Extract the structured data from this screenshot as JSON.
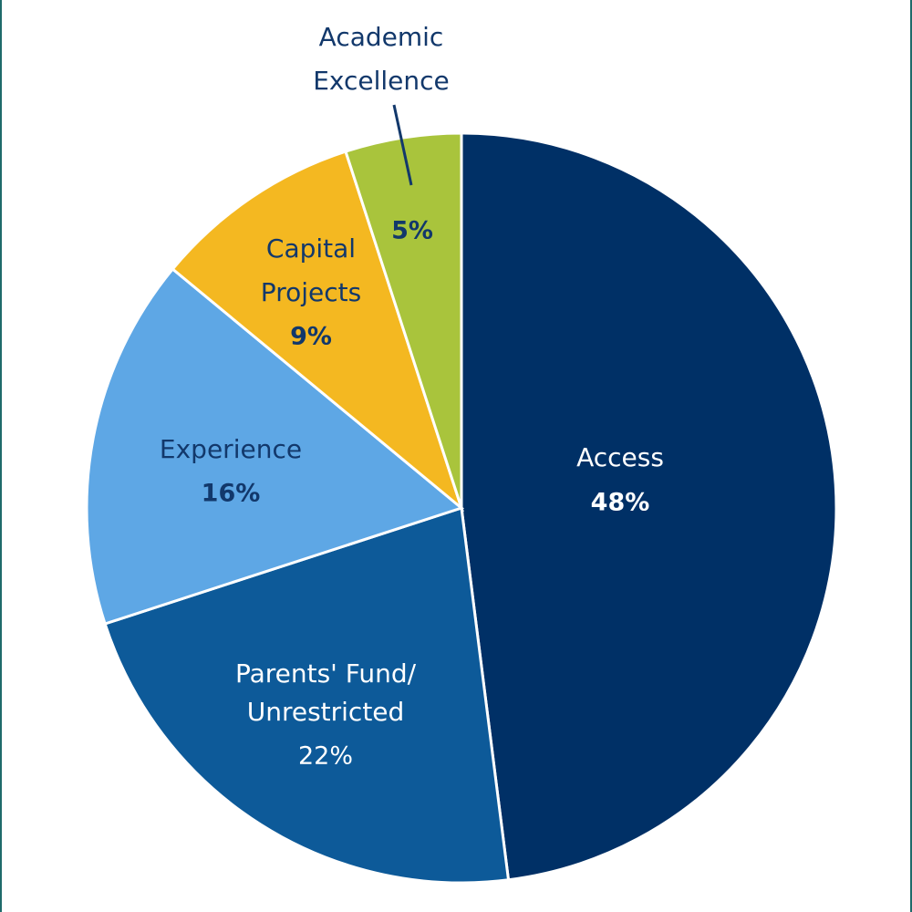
{
  "chart_data": {
    "type": "pie",
    "slices": [
      {
        "name": "Access",
        "value": 48,
        "label": "Access",
        "pct_label": "48%",
        "color": "#003066",
        "label_color": "#ffffff",
        "pct_bold": true
      },
      {
        "name": "Parents' Fund/ Unrestricted",
        "value": 22,
        "label_lines": [
          "Parents' Fund/",
          "Unrestricted"
        ],
        "pct_label": "22%",
        "color": "#0d5a99",
        "label_color": "#ffffff",
        "pct_bold": false
      },
      {
        "name": "Experience",
        "value": 16,
        "label": "Experience",
        "pct_label": "16%",
        "color": "#5ea7e5",
        "label_color": "#12386b",
        "pct_bold": true
      },
      {
        "name": "Capital Projects",
        "value": 9,
        "label_lines": [
          "Capital",
          "Projects"
        ],
        "pct_label": "9%",
        "color": "#f4b821",
        "label_color": "#12386b",
        "pct_bold": true
      },
      {
        "name": "Academic Excellence",
        "value": 5,
        "label_lines": [
          "Academic",
          "Excellence"
        ],
        "pct_label": "5%",
        "color": "#a9c43c",
        "label_color": "#12386b",
        "pct_bold": true
      }
    ],
    "start_angle_deg": 0,
    "direction": "clockwise"
  }
}
